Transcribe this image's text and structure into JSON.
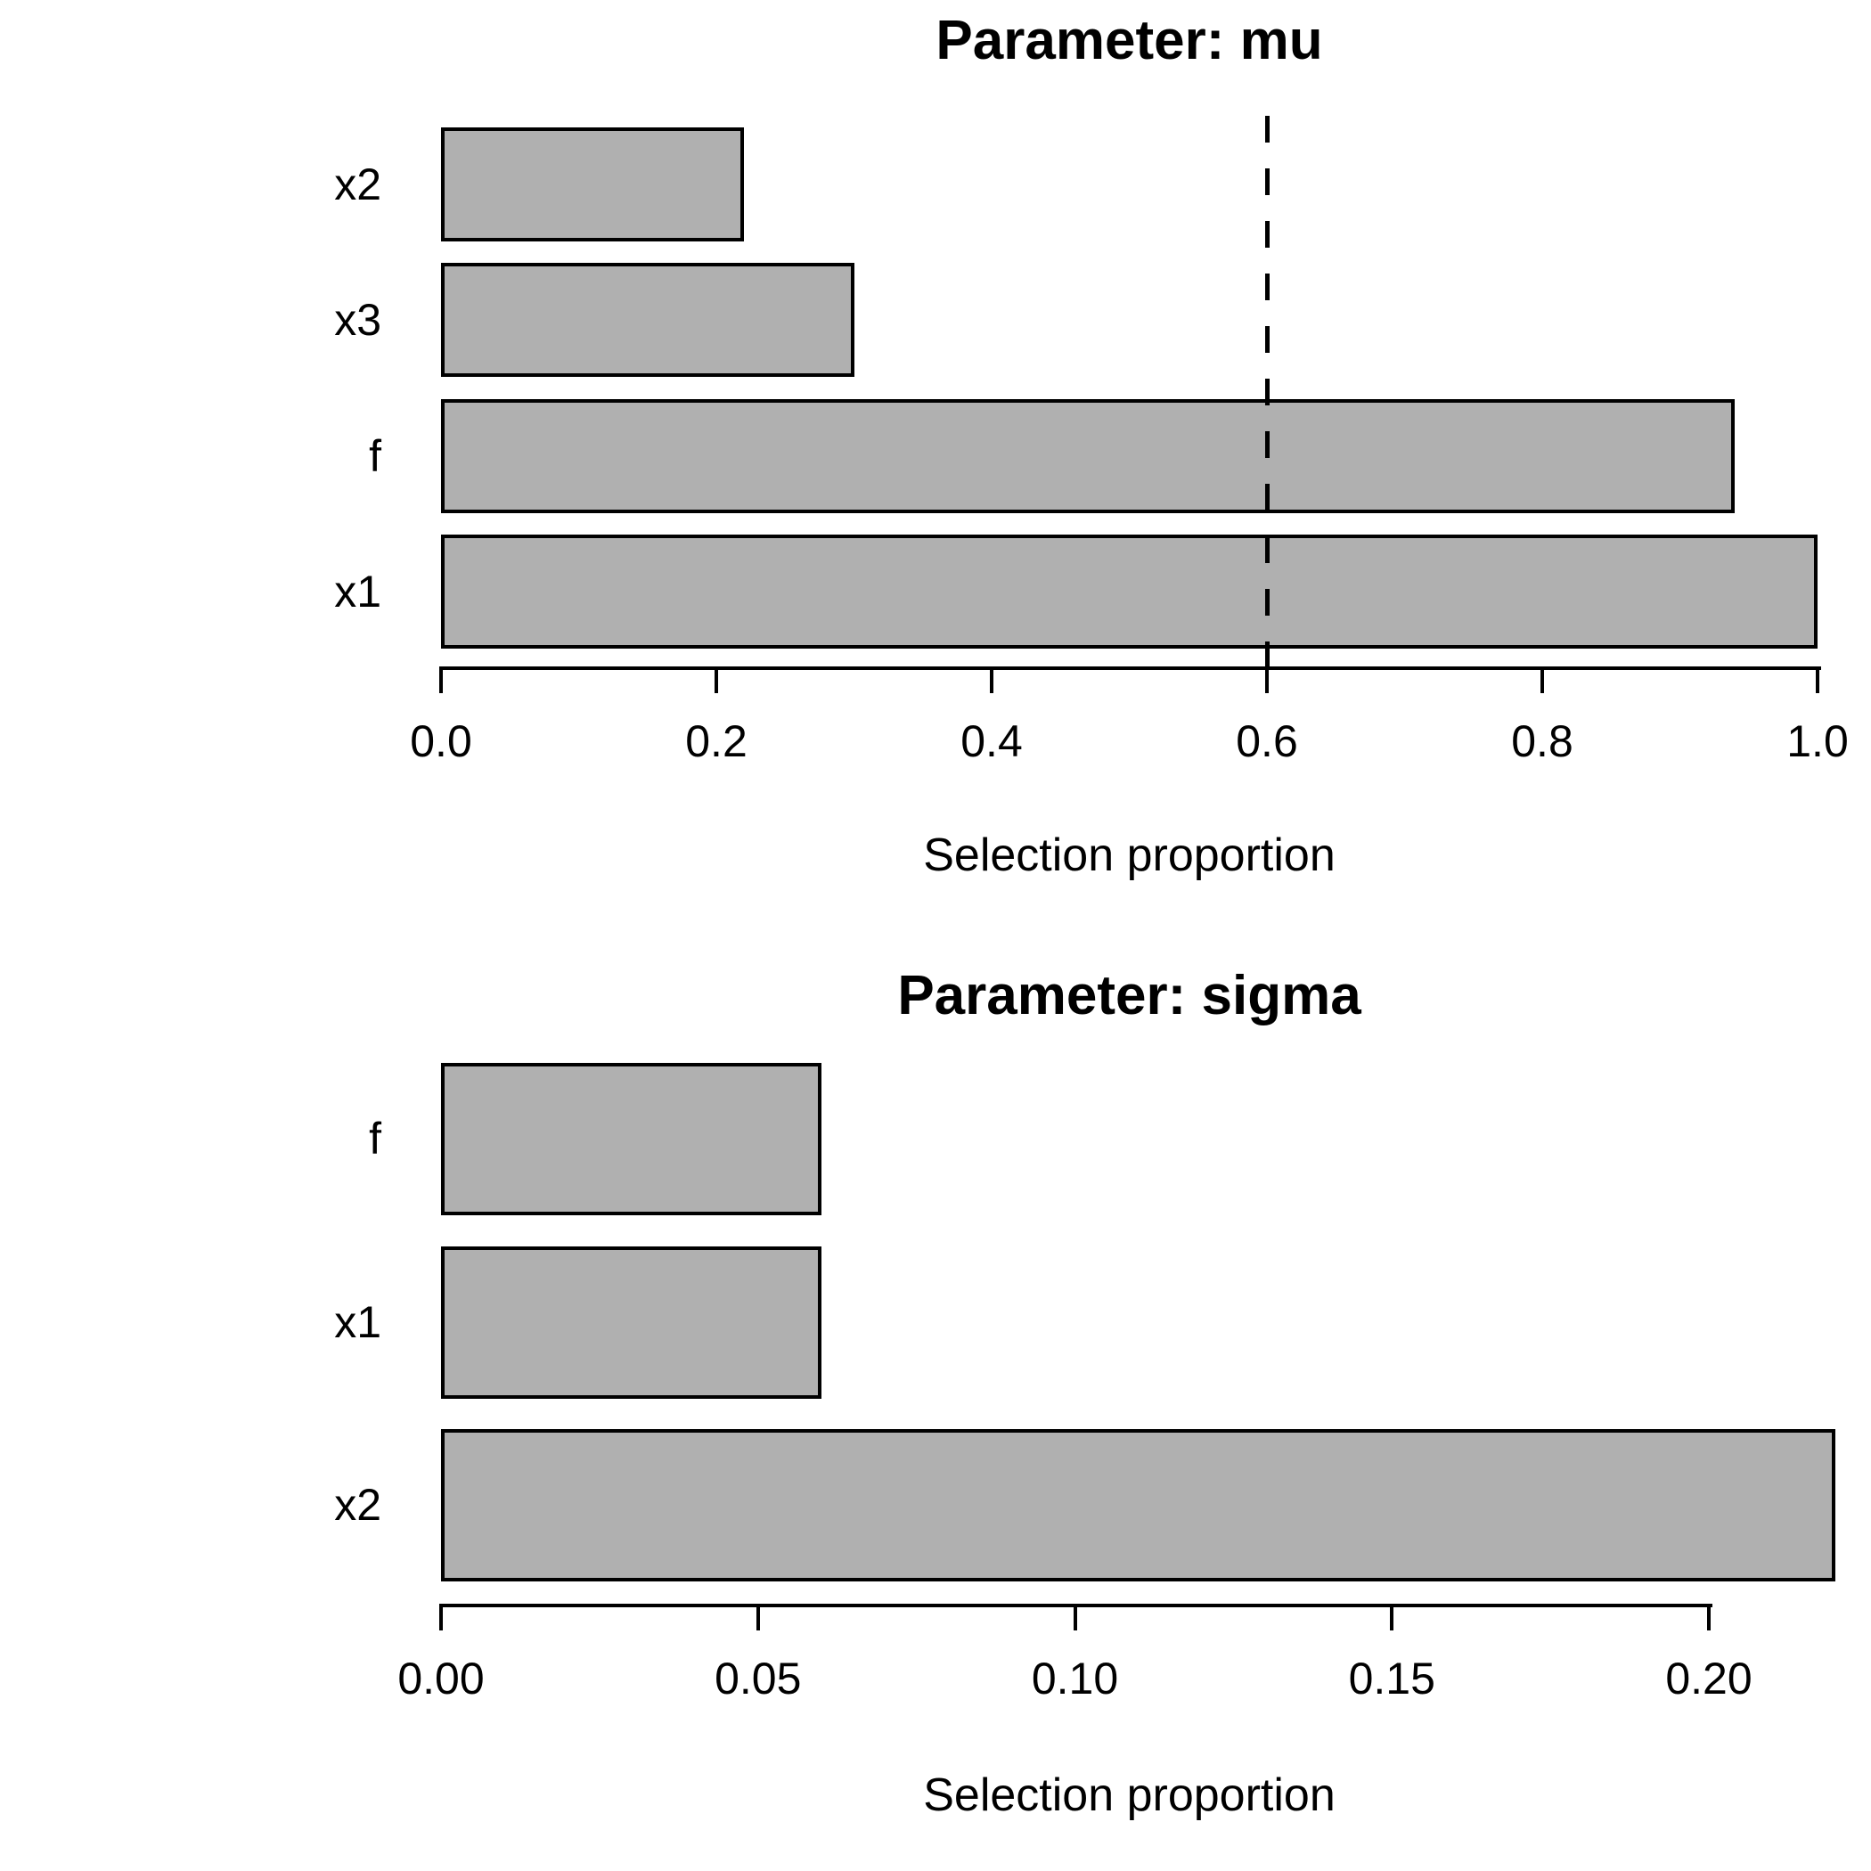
{
  "figure": {
    "background": "#ffffff",
    "bar_fill": "#b0b0b0",
    "bar_border": "#000000",
    "text_color": "#000000"
  },
  "chart_data": [
    {
      "type": "bar",
      "orientation": "horizontal",
      "title": "Parameter: mu",
      "categories": [
        "x2",
        "x3",
        "f",
        "x1"
      ],
      "values": [
        0.22,
        0.3,
        0.94,
        1.0
      ],
      "xlabel": "Selection proportion",
      "xlim": [
        0.0,
        1.0
      ],
      "xticks": [
        0.0,
        0.2,
        0.4,
        0.6,
        0.8,
        1.0
      ],
      "xtick_labels": [
        "0.0",
        "0.2",
        "0.4",
        "0.6",
        "0.8",
        "1.0"
      ],
      "grid": false,
      "legend": null,
      "vline": {
        "value": 0.6,
        "style": "dashed",
        "color": "#000000"
      }
    },
    {
      "type": "bar",
      "orientation": "horizontal",
      "title": "Parameter: sigma",
      "categories": [
        "f",
        "x1",
        "x2"
      ],
      "values": [
        0.06,
        0.06,
        0.22
      ],
      "xlabel": "Selection proportion",
      "xlim": [
        0.0,
        0.22
      ],
      "xticks": [
        0.0,
        0.05,
        0.1,
        0.15,
        0.2
      ],
      "xtick_labels": [
        "0.00",
        "0.05",
        "0.10",
        "0.15",
        "0.20"
      ],
      "grid": false,
      "legend": null,
      "vline": null
    }
  ]
}
